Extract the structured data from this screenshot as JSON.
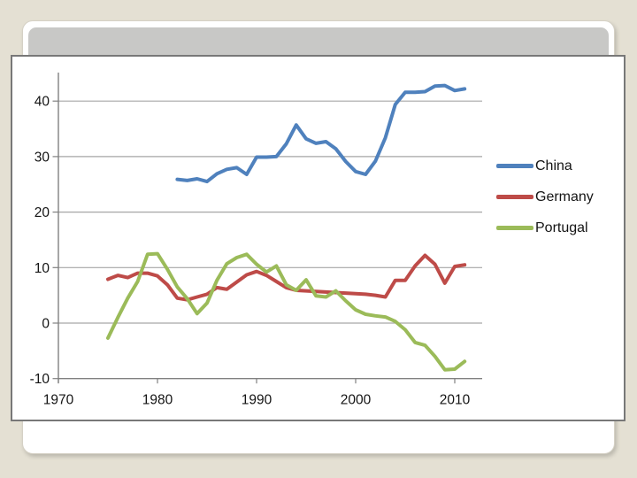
{
  "slide": {
    "background_color": "#E4E0D3",
    "card_color": "#FFFFFF",
    "header_band_color": "#C8C8C6"
  },
  "chart_data": {
    "type": "line",
    "title": "",
    "xlabel": "",
    "ylabel": "",
    "grid": true,
    "legend_position": "right",
    "xlim": [
      1969,
      2012.8
    ],
    "ylim": [
      -12,
      45
    ],
    "x_ticks": [
      1970,
      1980,
      1990,
      2000,
      2010
    ],
    "y_ticks": [
      -10,
      0,
      10,
      20,
      30,
      40
    ],
    "gridline_color": "#A6A6A6",
    "axis_color": "#808080",
    "series": [
      {
        "name": "China",
        "color": "#4F81BD",
        "start_year": 1982,
        "values": [
          25.9,
          25.7,
          26.0,
          25.5,
          26.9,
          27.7,
          28.0,
          26.8,
          29.9,
          29.9,
          30.0,
          32.3,
          35.7,
          33.2,
          32.4,
          32.7,
          31.4,
          29.1,
          27.3,
          26.8,
          29.2,
          33.4,
          39.4,
          41.6,
          41.6,
          41.7,
          42.7,
          42.8,
          41.9,
          42.2
        ]
      },
      {
        "name": "Germany",
        "color": "#BE4B48",
        "start_year": 1975,
        "values": [
          7.9,
          8.6,
          8.2,
          9.0,
          9.0,
          8.5,
          6.9,
          4.5,
          4.2,
          4.7,
          5.2,
          6.4,
          6.1,
          7.4,
          8.7,
          9.3,
          8.6,
          7.5,
          6.4,
          5.9,
          5.8,
          5.7,
          5.6,
          5.5,
          5.4,
          5.3,
          5.2,
          5.0,
          4.7,
          7.7,
          7.7,
          10.3,
          12.2,
          10.6,
          7.2,
          10.2,
          10.5
        ]
      },
      {
        "name": "Portugal",
        "color": "#9BBB59",
        "start_year": 1975,
        "values": [
          -2.7,
          1.0,
          4.5,
          7.5,
          12.4,
          12.5,
          9.7,
          6.5,
          4.4,
          1.7,
          3.6,
          7.7,
          10.7,
          11.8,
          12.4,
          10.6,
          9.2,
          10.3,
          6.9,
          5.9,
          7.8,
          4.9,
          4.7,
          5.8,
          4.0,
          2.4,
          1.6,
          1.3,
          1.1,
          0.3,
          -1.2,
          -3.5,
          -4.0,
          -6.0,
          -8.4,
          -8.3,
          -6.9
        ]
      }
    ]
  }
}
